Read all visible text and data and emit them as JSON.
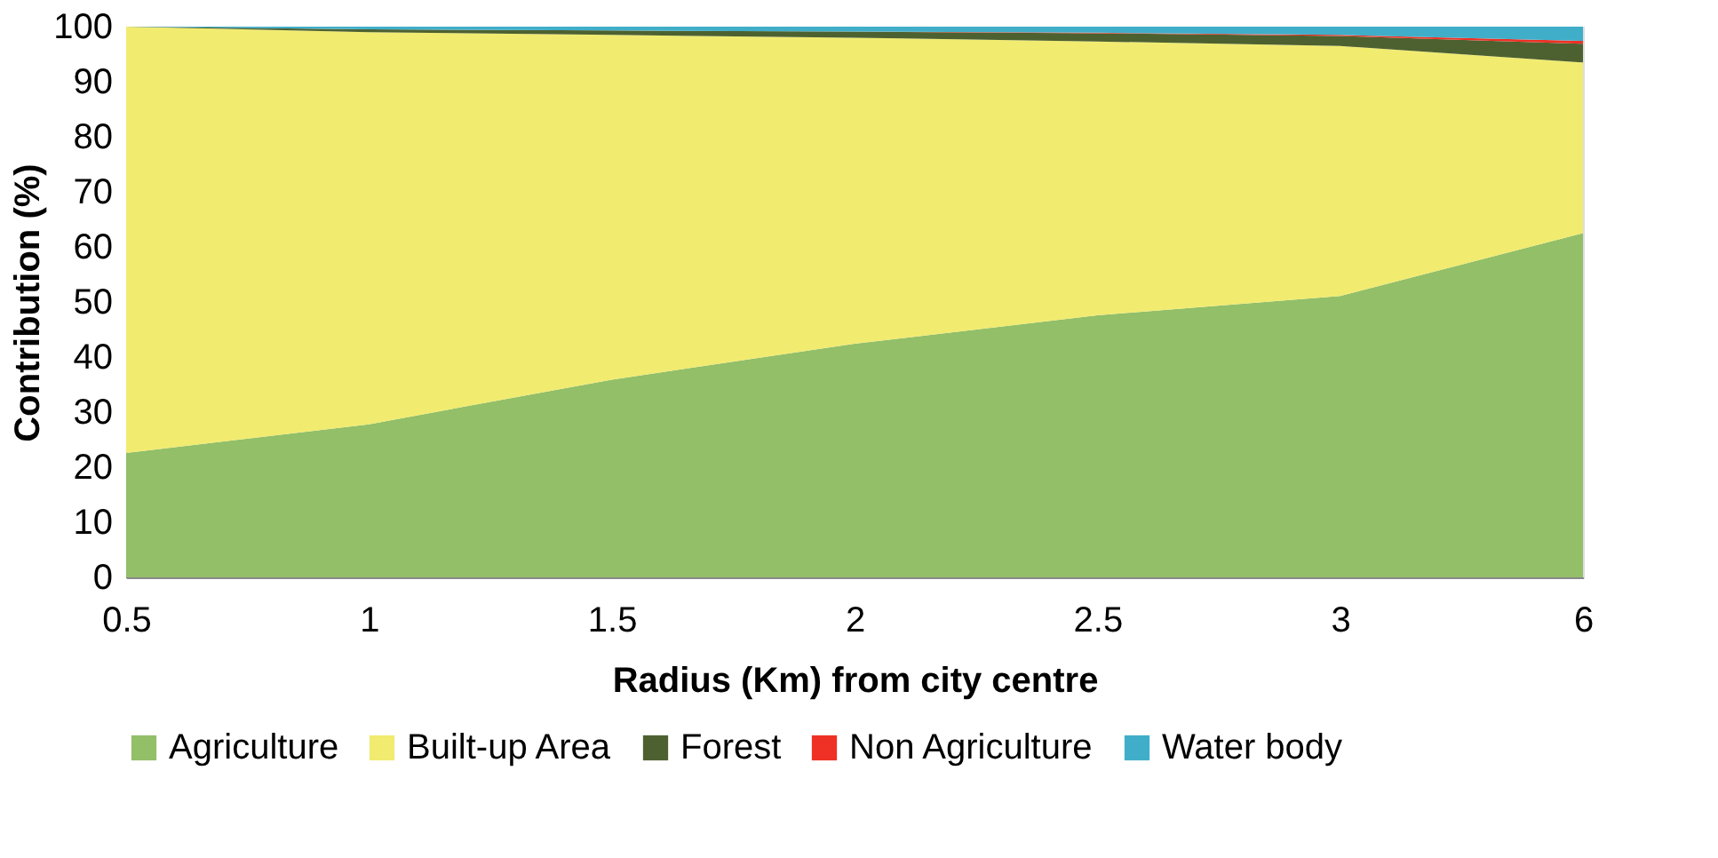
{
  "chart_data": {
    "type": "area",
    "stacked": true,
    "xlabel": "Radius (Km) from city centre",
    "ylabel": "Contribution (%)",
    "categories": [
      "0.5",
      "1",
      "1.5",
      "2",
      "2.5",
      "3",
      "6"
    ],
    "ylim": [
      0,
      100
    ],
    "yticks": [
      0,
      10,
      20,
      30,
      40,
      50,
      60,
      70,
      80,
      90,
      100
    ],
    "grid": false,
    "legend": "bottom",
    "series": [
      {
        "name": "Agriculture",
        "color": "#92bf68",
        "values": [
          22.6,
          27.8,
          35.9,
          42.4,
          47.6,
          51.1,
          62.5
        ]
      },
      {
        "name": "Built-up Area",
        "color": "#f1eb70",
        "values": [
          77.4,
          71.2,
          62.6,
          55.6,
          49.7,
          45.4,
          31.0
        ]
      },
      {
        "name": "Forest",
        "color": "#4d6130",
        "values": [
          0,
          0.5,
          0.8,
          1.1,
          1.5,
          1.8,
          3.4
        ]
      },
      {
        "name": "Non Agriculture",
        "color": "#ee3124",
        "values": [
          0,
          0,
          0,
          0,
          0.1,
          0.2,
          0.5
        ]
      },
      {
        "name": "Water body",
        "color": "#40aec9",
        "values": [
          0,
          0.5,
          0.7,
          0.9,
          1.1,
          1.5,
          2.6
        ]
      }
    ]
  }
}
